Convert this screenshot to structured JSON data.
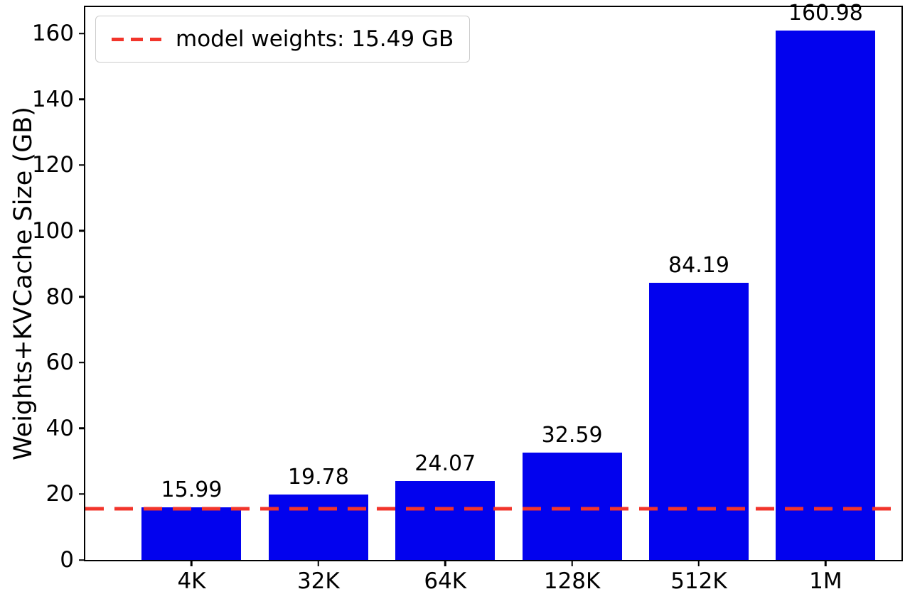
{
  "chart_data": {
    "type": "bar",
    "title": "",
    "xlabel": "",
    "ylabel": "Weights+KVCache Size (GB)",
    "categories": [
      "4K",
      "32K",
      "64K",
      "128K",
      "512K",
      "1M"
    ],
    "values": [
      15.99,
      19.78,
      24.07,
      32.59,
      84.19,
      160.98
    ],
    "bar_labels": [
      "15.99",
      "19.78",
      "24.07",
      "32.59",
      "84.19",
      "160.98"
    ],
    "ylim": [
      0,
      168
    ],
    "yticks": [
      0,
      20,
      40,
      60,
      80,
      100,
      120,
      140,
      160
    ],
    "grid": false,
    "legend": {
      "position": "upper-left",
      "entries": [
        {
          "label": "model weights: 15.49 GB",
          "style": "dashed",
          "color": "#f2352b"
        }
      ]
    },
    "threshold_line": {
      "value": 15.49,
      "style": "dashed",
      "color": "#f2352b"
    },
    "colors": {
      "bar": "#0202ee",
      "axis": "#000000",
      "text": "#000000"
    }
  }
}
